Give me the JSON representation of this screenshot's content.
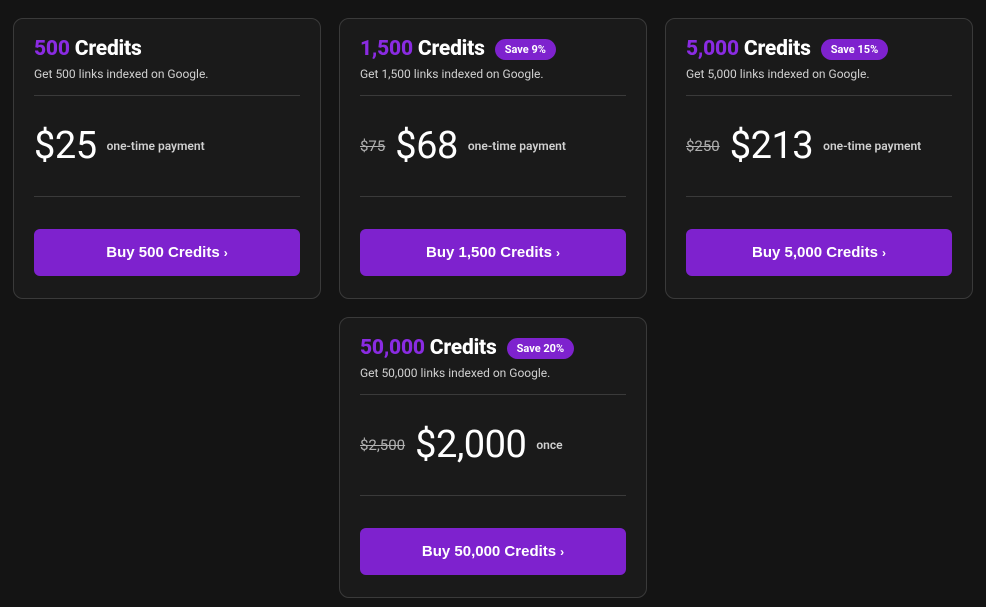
{
  "colors": {
    "page_bg": "#141414",
    "card_bg": "#1a1a1a",
    "card_border": "#3a3a3a",
    "accent": "#8a2be2",
    "button_bg": "#7e22ce",
    "text_primary": "#ffffff",
    "text_secondary": "#d0d0d0",
    "text_muted": "#b0b0b0"
  },
  "cards": [
    {
      "amount": "500",
      "title_suffix": "Credits",
      "save_badge": "",
      "subtext": "Get 500 links indexed on Google.",
      "old_price": "",
      "price": "$25",
      "payment_note": "one-time payment",
      "button_label": "Buy 500 Credits"
    },
    {
      "amount": "1,500",
      "title_suffix": "Credits",
      "save_badge": "Save 9%",
      "subtext": "Get 1,500 links indexed on Google.",
      "old_price": "$75",
      "price": "$68",
      "payment_note": "one-time payment",
      "button_label": "Buy 1,500 Credits"
    },
    {
      "amount": "5,000",
      "title_suffix": "Credits",
      "save_badge": "Save 15%",
      "subtext": "Get 5,000 links indexed on Google.",
      "old_price": "$250",
      "price": "$213",
      "payment_note": "one-time payment",
      "button_label": "Buy 5,000 Credits"
    },
    {
      "amount": "50,000",
      "title_suffix": "Credits",
      "save_badge": "Save 20%",
      "subtext": "Get 50,000 links indexed on Google.",
      "old_price": "$2,500",
      "price": "$2,000",
      "payment_note": "once",
      "button_label": "Buy 50,000 Credits"
    }
  ]
}
